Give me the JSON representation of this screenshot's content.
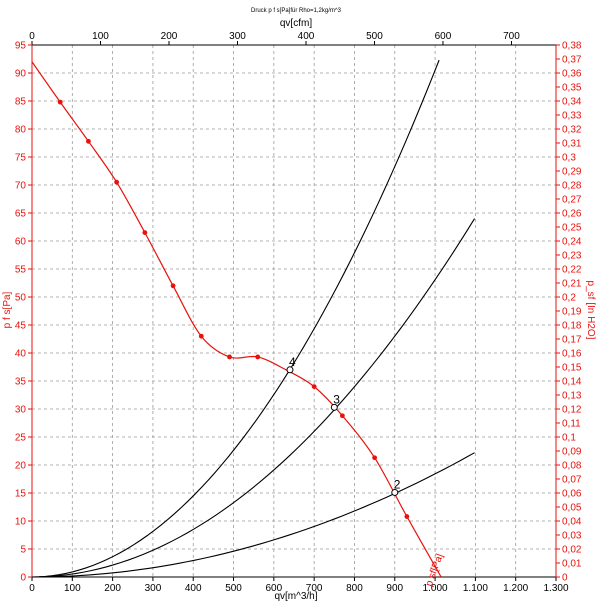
{
  "chart_data": {
    "type": "line",
    "title": "Druck p f s[Pa]für Rho=1,2kg/m^3",
    "axes": {
      "x_bottom": {
        "label": "qv[m^3/h]",
        "range": [
          0,
          1300
        ],
        "ticks": [
          0,
          100,
          200,
          300,
          400,
          500,
          600,
          700,
          800,
          900,
          1000,
          1100,
          1200,
          1300
        ],
        "tick_labels": [
          "0",
          "100",
          "200",
          "300",
          "400",
          "500",
          "600",
          "700",
          "800",
          "900",
          "1.000",
          "1.100",
          "1.200",
          "1.300"
        ]
      },
      "x_top": {
        "label": "qv[cfm]",
        "range": [
          0,
          765
        ],
        "ticks": [
          0,
          100,
          200,
          300,
          400,
          500,
          600,
          700
        ],
        "tick_labels": [
          "0",
          "100",
          "200",
          "300",
          "400",
          "500",
          "600",
          "700"
        ]
      },
      "y_left": {
        "label": "p f s[Pa]",
        "range": [
          0,
          95
        ],
        "ticks": [
          0,
          5,
          10,
          15,
          20,
          25,
          30,
          35,
          40,
          45,
          50,
          55,
          60,
          65,
          70,
          75,
          80,
          85,
          90,
          95
        ],
        "tick_labels": [
          "0",
          "5",
          "10",
          "15",
          "20",
          "25",
          "30",
          "35",
          "40",
          "45",
          "50",
          "55",
          "60",
          "65",
          "70",
          "75",
          "80",
          "85",
          "90",
          "95"
        ]
      },
      "y_right": {
        "label": "p_sf [In H2O]",
        "range": [
          0,
          0.38
        ],
        "ticks": [
          0,
          0.01,
          0.02,
          0.03,
          0.04,
          0.05,
          0.06,
          0.07,
          0.08,
          0.09,
          0.1,
          0.11,
          0.12,
          0.13,
          0.14,
          0.15,
          0.16,
          0.17,
          0.18,
          0.19,
          0.2,
          0.21,
          0.22,
          0.23,
          0.24,
          0.25,
          0.26,
          0.27,
          0.28,
          0.29,
          0.3,
          0.31,
          0.32,
          0.33,
          0.34,
          0.35,
          0.36,
          0.37,
          0.38
        ],
        "tick_labels": [
          "0",
          "0,01",
          "0,02",
          "0,03",
          "0,04",
          "0,05",
          "0,06",
          "0,07",
          "0,08",
          "0,09",
          "0,1",
          "0,11",
          "0,12",
          "0,13",
          "0,14",
          "0,15",
          "0,16",
          "0,17",
          "0,18",
          "0,19",
          "0,2",
          "0,21",
          "0,22",
          "0,23",
          "0,24",
          "0,25",
          "0,26",
          "0,27",
          "0,28",
          "0,29",
          "0,3",
          "0,31",
          "0,32",
          "0,33",
          "0,34",
          "0,35",
          "0,36",
          "0,37",
          "0,38"
        ]
      }
    },
    "grid": true,
    "fan_curve": {
      "label": "p sf[Pa]",
      "color": "#e8120c",
      "points": [
        [
          0,
          92
        ],
        [
          70,
          84.8
        ],
        [
          140,
          77.8
        ],
        [
          210,
          70.5
        ],
        [
          280,
          61.5
        ],
        [
          350,
          52
        ],
        [
          420,
          43
        ],
        [
          490,
          39.3
        ],
        [
          560,
          39.3
        ],
        [
          630,
          37
        ],
        [
          700,
          34
        ],
        [
          770,
          28.8
        ],
        [
          850,
          21.3
        ],
        [
          930,
          10.8
        ],
        [
          1015,
          0
        ]
      ],
      "markers": [
        [
          70,
          84.8
        ],
        [
          140,
          77.8
        ],
        [
          210,
          70.5
        ],
        [
          280,
          61.5
        ],
        [
          350,
          52
        ],
        [
          420,
          43
        ],
        [
          490,
          39.3
        ],
        [
          560,
          39.3
        ],
        [
          700,
          34
        ],
        [
          770,
          28.8
        ],
        [
          850,
          21.3
        ],
        [
          930,
          10.8
        ]
      ]
    },
    "system_curves": [
      {
        "color": "#000000",
        "x_end": 1010,
        "y_end": 92.3
      },
      {
        "color": "#000000",
        "x_end": 1098,
        "y_end": 64
      },
      {
        "color": "#000000",
        "x_end": 1098,
        "y_end": 22.2
      }
    ],
    "operating_points": [
      {
        "label": "4",
        "x": 640,
        "y": 37
      },
      {
        "label": "3",
        "x": 750,
        "y": 30.3
      },
      {
        "label": "2",
        "x": 900,
        "y": 15.1
      }
    ]
  }
}
